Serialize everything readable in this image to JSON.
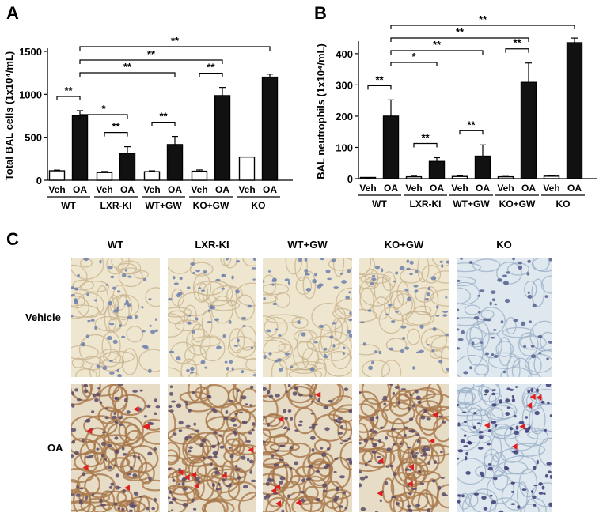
{
  "panels": {
    "A": "A",
    "B": "B",
    "C": "C"
  },
  "chart_data": [
    {
      "type": "bar",
      "panel": "A",
      "ylabel": "Total BAL cells (1x10⁴/mL)",
      "ylim": [
        0,
        1500
      ],
      "yticks": [
        "0",
        "500",
        "1000",
        "1500"
      ],
      "groups": [
        "WT",
        "LXR-KI",
        "WT+GW",
        "KO+GW",
        "KO"
      ],
      "categories": [
        "Veh",
        "OA",
        "Veh",
        "OA",
        "Veh",
        "OA",
        "Veh",
        "OA",
        "Veh",
        "OA"
      ],
      "values": [
        110,
        750,
        90,
        310,
        100,
        415,
        105,
        985,
        270,
        1200
      ],
      "errors": [
        8,
        60,
        12,
        80,
        10,
        95,
        15,
        95,
        0,
        35
      ],
      "filled": [
        false,
        true,
        false,
        true,
        false,
        true,
        false,
        true,
        false,
        true
      ],
      "annotations": [
        {
          "label": "**",
          "from": 0,
          "to": 1
        },
        {
          "label": "**",
          "from": 2,
          "to": 3
        },
        {
          "label": "**",
          "from": 4,
          "to": 5
        },
        {
          "label": "**",
          "from": 6,
          "to": 7
        },
        {
          "label": "*",
          "from": 1,
          "to": 3
        },
        {
          "label": "**",
          "from": 1,
          "to": 5
        },
        {
          "label": "**",
          "from": 1,
          "to": 7
        },
        {
          "label": "**",
          "from": 1,
          "to": 9
        }
      ]
    },
    {
      "type": "bar",
      "panel": "B",
      "ylabel": "BAL neutrophils (1x10⁴/mL)",
      "ylim": [
        0,
        430
      ],
      "yticks": [
        "0",
        "100",
        "200",
        "300",
        "400"
      ],
      "groups": [
        "WT",
        "LXR-KI",
        "WT+GW",
        "KO+GW",
        "KO"
      ],
      "categories": [
        "Veh",
        "OA",
        "Veh",
        "OA",
        "Veh",
        "OA",
        "Veh",
        "OA",
        "Veh",
        "OA"
      ],
      "values": [
        1,
        200,
        6,
        55,
        7,
        72,
        6,
        308,
        8,
        435
      ],
      "errors": [
        1,
        52,
        2,
        12,
        2,
        36,
        1,
        62,
        1,
        15
      ],
      "filled": [
        false,
        true,
        false,
        true,
        false,
        true,
        false,
        true,
        false,
        true
      ],
      "annotations": [
        {
          "label": "**",
          "from": 0,
          "to": 1
        },
        {
          "label": "**",
          "from": 2,
          "to": 3
        },
        {
          "label": "**",
          "from": 4,
          "to": 5
        },
        {
          "label": "**",
          "from": 6,
          "to": 7
        },
        {
          "label": "*",
          "from": 1,
          "to": 3
        },
        {
          "label": "**",
          "from": 1,
          "to": 5
        },
        {
          "label": "**",
          "from": 1,
          "to": 7
        },
        {
          "label": "**",
          "from": 1,
          "to": 9
        }
      ]
    }
  ],
  "micrographs": {
    "columns": [
      "WT",
      "LXR-KI",
      "WT+GW",
      "KO+GW",
      "KO"
    ],
    "rows": [
      "Vehicle",
      "OA"
    ]
  }
}
